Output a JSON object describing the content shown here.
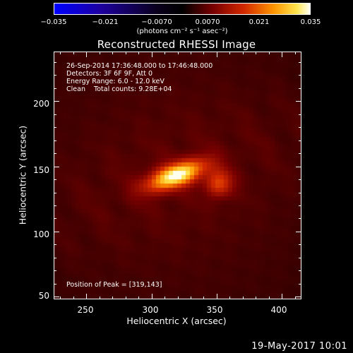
{
  "colorbar": {
    "tick_labels": [
      "−0.035",
      "−0.021",
      "−0.0070",
      "0.0070",
      "0.021",
      "0.035"
    ],
    "units_label": "(photons cm⁻² s⁻¹ asec⁻²)",
    "colormap": "rhessi"
  },
  "title": "Reconstructed RHESSI Image",
  "info": {
    "line1": "26-Sep-2014 17:36:48.000 to 17:46:48.000",
    "line2": "Detectors: 3F 6F 9F, Att 0",
    "line3": "Energy Range: 6.0 - 12.0 keV",
    "line4": "Clean    Total counts: 9.28E+04",
    "peak": "Position of Peak = [319,143]"
  },
  "axes": {
    "xlabel": "Heliocentric X (arcsec)",
    "ylabel": "Heliocentric Y (arcsec)",
    "xlim": [
      225,
      415
    ],
    "ylim": [
      48,
      238
    ],
    "xticks": [
      "250",
      "300",
      "350",
      "400"
    ],
    "yticks": [
      "50",
      "100",
      "150",
      "200"
    ]
  },
  "image": {
    "type": "heatmap",
    "peak_x": 319,
    "peak_y": 143,
    "value_range": [
      -0.035,
      0.035
    ]
  },
  "timestamp": "19-May-2017 10:01"
}
